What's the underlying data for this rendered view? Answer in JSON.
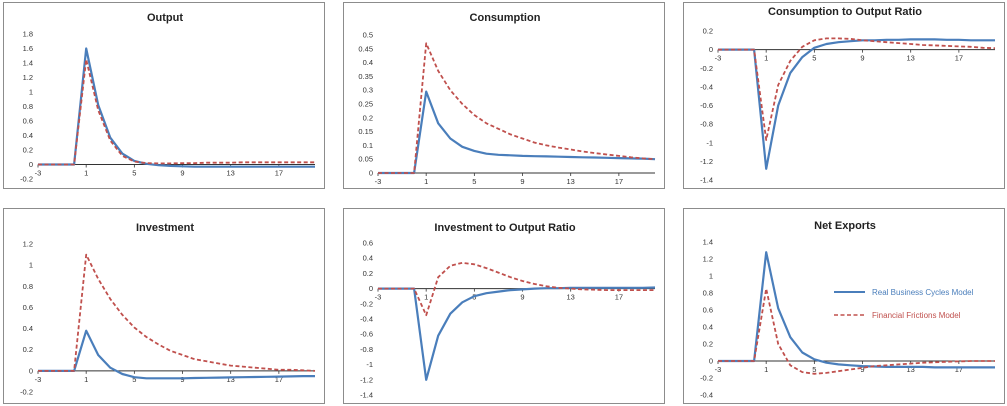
{
  "colors": {
    "rbc": "#4a7ebb",
    "ff": "#c0504d",
    "axis": "#333333"
  },
  "legend": {
    "placement": "right",
    "entries": [
      {
        "label": "Real Business Cycles Model",
        "color": "#4a7ebb",
        "style": "solid"
      },
      {
        "label": "Financial Frictions Model",
        "color": "#c0504d",
        "style": "dashed"
      }
    ]
  },
  "chart_data": [
    {
      "type": "line",
      "title": "Output",
      "x": [
        -3,
        -2,
        -1,
        0,
        1,
        2,
        3,
        4,
        5,
        6,
        7,
        8,
        9,
        10,
        11,
        12,
        13,
        14,
        15,
        16,
        17,
        18,
        19,
        20
      ],
      "x_ticks": [
        -3,
        1,
        5,
        9,
        13,
        17
      ],
      "ylim": [
        -0.2,
        1.8
      ],
      "y_ticks": [
        "-0.2",
        "0",
        "0.2",
        "0.4",
        "0.6",
        "0.8",
        "1",
        "1.2",
        "1.4",
        "1.6",
        "1.8"
      ],
      "grid": false,
      "series": [
        {
          "name": "Real Business Cycles Model",
          "values": [
            0,
            0,
            0,
            0,
            1.6,
            0.82,
            0.37,
            0.15,
            0.05,
            0.01,
            -0.01,
            -0.02,
            -0.025,
            -0.03,
            -0.03,
            -0.03,
            -0.03,
            -0.03,
            -0.03,
            -0.03,
            -0.03,
            -0.03,
            -0.03,
            -0.03
          ]
        },
        {
          "name": "Financial Frictions Model",
          "values": [
            0,
            0,
            0,
            0,
            1.45,
            0.75,
            0.33,
            0.12,
            0.04,
            0.02,
            0.015,
            0.015,
            0.02,
            0.02,
            0.025,
            0.025,
            0.025,
            0.03,
            0.03,
            0.03,
            0.03,
            0.03,
            0.03,
            0.03
          ]
        }
      ]
    },
    {
      "type": "line",
      "title": "Consumption",
      "x": [
        -3,
        -2,
        -1,
        0,
        1,
        2,
        3,
        4,
        5,
        6,
        7,
        8,
        9,
        10,
        11,
        12,
        13,
        14,
        15,
        16,
        17,
        18,
        19,
        20
      ],
      "x_ticks": [
        -3,
        1,
        5,
        9,
        13,
        17
      ],
      "ylim": [
        0,
        0.5
      ],
      "y_ticks": [
        "0",
        "0.05",
        "0.1",
        "0.15",
        "0.2",
        "0.25",
        "0.3",
        "0.35",
        "0.4",
        "0.45",
        "0.5"
      ],
      "grid": false,
      "series": [
        {
          "name": "Real Business Cycles Model",
          "values": [
            0,
            0,
            0,
            0,
            0.295,
            0.18,
            0.125,
            0.095,
            0.08,
            0.07,
            0.066,
            0.064,
            0.062,
            0.061,
            0.06,
            0.059,
            0.058,
            0.057,
            0.056,
            0.055,
            0.054,
            0.053,
            0.052,
            0.05
          ]
        },
        {
          "name": "Financial Frictions Model",
          "values": [
            0,
            0,
            0,
            0,
            0.47,
            0.37,
            0.3,
            0.25,
            0.21,
            0.18,
            0.16,
            0.14,
            0.125,
            0.11,
            0.1,
            0.092,
            0.085,
            0.078,
            0.072,
            0.067,
            0.062,
            0.057,
            0.053,
            0.05
          ]
        }
      ]
    },
    {
      "type": "line",
      "title": "Consumption to Output Ratio",
      "x": [
        -3,
        -2,
        -1,
        0,
        1,
        2,
        3,
        4,
        5,
        6,
        7,
        8,
        9,
        10,
        11,
        12,
        13,
        14,
        15,
        16,
        17,
        18,
        19,
        20
      ],
      "x_ticks": [
        -3,
        1,
        5,
        9,
        13,
        17
      ],
      "ylim": [
        -1.4,
        0.2
      ],
      "y_ticks": [
        "-1.4",
        "-1.2",
        "-1",
        "-0.8",
        "-0.6",
        "-0.4",
        "-0.2",
        "0",
        "0.2"
      ],
      "grid": false,
      "series": [
        {
          "name": "Real Business Cycles Model",
          "values": [
            0,
            0,
            0,
            0,
            -1.28,
            -0.6,
            -0.25,
            -0.08,
            0.02,
            0.06,
            0.08,
            0.09,
            0.1,
            0.1,
            0.105,
            0.105,
            0.11,
            0.11,
            0.11,
            0.105,
            0.105,
            0.1,
            0.1,
            0.1
          ]
        },
        {
          "name": "Financial Frictions Model",
          "values": [
            0,
            0,
            0,
            0,
            -0.97,
            -0.38,
            -0.12,
            0.03,
            0.1,
            0.12,
            0.12,
            0.115,
            0.1,
            0.09,
            0.08,
            0.07,
            0.06,
            0.05,
            0.045,
            0.04,
            0.035,
            0.03,
            0.02,
            0.015
          ]
        }
      ]
    },
    {
      "type": "line",
      "title": "Investment",
      "x": [
        -3,
        -2,
        -1,
        0,
        1,
        2,
        3,
        4,
        5,
        6,
        7,
        8,
        9,
        10,
        11,
        12,
        13,
        14,
        15,
        16,
        17,
        18,
        19,
        20
      ],
      "x_ticks": [
        -3,
        1,
        5,
        9,
        13,
        17
      ],
      "ylim": [
        -0.2,
        1.2
      ],
      "y_ticks": [
        "-0.2",
        "0",
        "0.2",
        "0.4",
        "0.6",
        "0.8",
        "1",
        "1.2"
      ],
      "grid": false,
      "series": [
        {
          "name": "Real Business Cycles Model",
          "values": [
            0,
            0,
            0,
            0,
            0.38,
            0.15,
            0.03,
            -0.03,
            -0.06,
            -0.07,
            -0.07,
            -0.07,
            -0.07,
            -0.068,
            -0.066,
            -0.064,
            -0.062,
            -0.06,
            -0.058,
            -0.056,
            -0.054,
            -0.052,
            -0.05,
            -0.05
          ]
        },
        {
          "name": "Financial Frictions Model",
          "values": [
            0,
            0,
            0,
            0,
            1.1,
            0.87,
            0.68,
            0.53,
            0.41,
            0.32,
            0.25,
            0.19,
            0.15,
            0.11,
            0.09,
            0.07,
            0.05,
            0.04,
            0.03,
            0.02,
            0.01,
            0.01,
            0.005,
            0
          ]
        }
      ]
    },
    {
      "type": "line",
      "title": "Investment to Output Ratio",
      "x": [
        -3,
        -2,
        -1,
        0,
        1,
        2,
        3,
        4,
        5,
        6,
        7,
        8,
        9,
        10,
        11,
        12,
        13,
        14,
        15,
        16,
        17,
        18,
        19,
        20
      ],
      "x_ticks": [
        -3,
        1,
        5,
        9,
        13,
        17
      ],
      "ylim": [
        -1.4,
        0.6
      ],
      "y_ticks": [
        "-1.4",
        "-1.2",
        "-1",
        "-0.8",
        "-0.6",
        "-0.4",
        "-0.2",
        "0",
        "0.2",
        "0.4",
        "0.6"
      ],
      "grid": false,
      "series": [
        {
          "name": "Real Business Cycles Model",
          "values": [
            0,
            0,
            0,
            0,
            -1.2,
            -0.62,
            -0.33,
            -0.18,
            -0.1,
            -0.06,
            -0.04,
            -0.02,
            -0.01,
            0,
            0.005,
            0.005,
            0.01,
            0.01,
            0.01,
            0.01,
            0.01,
            0.01,
            0.01,
            0.015
          ]
        },
        {
          "name": "Financial Frictions Model",
          "values": [
            0,
            0,
            0,
            0,
            -0.35,
            0.15,
            0.3,
            0.34,
            0.32,
            0.27,
            0.21,
            0.15,
            0.1,
            0.06,
            0.03,
            0.01,
            0,
            -0.01,
            -0.015,
            -0.02,
            -0.02,
            -0.02,
            -0.02,
            -0.02
          ]
        }
      ]
    },
    {
      "type": "line",
      "title": "Net Exports",
      "x": [
        -3,
        -2,
        -1,
        0,
        1,
        2,
        3,
        4,
        5,
        6,
        7,
        8,
        9,
        10,
        11,
        12,
        13,
        14,
        15,
        16,
        17,
        18,
        19,
        20
      ],
      "x_ticks": [
        -3,
        1,
        5,
        9,
        13,
        17
      ],
      "ylim": [
        -0.4,
        1.4
      ],
      "y_ticks": [
        "-0.4",
        "-0.2",
        "0",
        "0.2",
        "0.4",
        "0.6",
        "0.8",
        "1",
        "1.2",
        "1.4"
      ],
      "grid": false,
      "series": [
        {
          "name": "Real Business Cycles Model",
          "values": [
            0,
            0,
            0,
            0,
            1.28,
            0.62,
            0.28,
            0.1,
            0.02,
            -0.02,
            -0.04,
            -0.05,
            -0.06,
            -0.065,
            -0.07,
            -0.07,
            -0.07,
            -0.07,
            -0.075,
            -0.075,
            -0.075,
            -0.075,
            -0.075,
            -0.075
          ]
        },
        {
          "name": "Financial Frictions Model",
          "values": [
            0,
            0,
            0,
            0,
            0.85,
            0.2,
            -0.05,
            -0.13,
            -0.15,
            -0.14,
            -0.12,
            -0.1,
            -0.08,
            -0.06,
            -0.05,
            -0.04,
            -0.03,
            -0.02,
            -0.015,
            -0.01,
            -0.005,
            0,
            0,
            0
          ]
        }
      ]
    }
  ]
}
